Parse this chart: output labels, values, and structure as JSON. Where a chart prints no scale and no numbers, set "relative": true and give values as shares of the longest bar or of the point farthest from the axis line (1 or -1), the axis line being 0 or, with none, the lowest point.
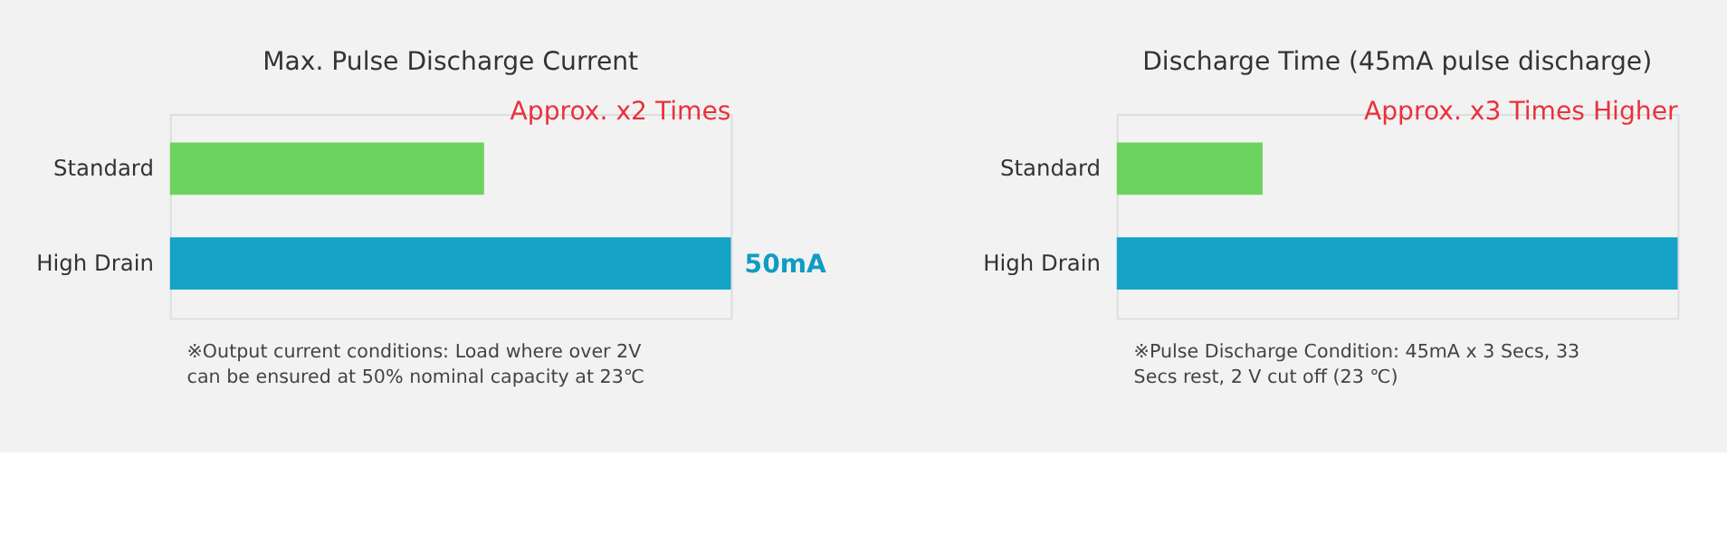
{
  "chart_data": [
    {
      "type": "bar",
      "orientation": "horizontal",
      "title": "Max. Pulse Discharge Current",
      "categories": [
        "Standard",
        "High Drain"
      ],
      "values": [
        28,
        50
      ],
      "xlim": [
        0,
        50
      ],
      "colors": [
        "#6dd35f",
        "#14a3c7"
      ],
      "value_labels": [
        null,
        "50mA"
      ],
      "annotations": [
        "Approx. x2 Times",
        "※Output current conditions:  Load where over 2V can be ensured at 50% nominal capacity at 23℃"
      ]
    },
    {
      "type": "bar",
      "orientation": "horizontal",
      "relative": true,
      "title": "Discharge Time (45mA pulse discharge)",
      "categories": [
        "Standard",
        "High Drain"
      ],
      "values": [
        0.26,
        1
      ],
      "colors": [
        "#6dd35f",
        "#14a3c7"
      ],
      "annotations": [
        "Approx. x3 Times Higher",
        "※Pulse Discharge Condition: 45mA x 3 Secs, 33 Secs rest, 2 V cut off (23 ℃)"
      ]
    }
  ]
}
